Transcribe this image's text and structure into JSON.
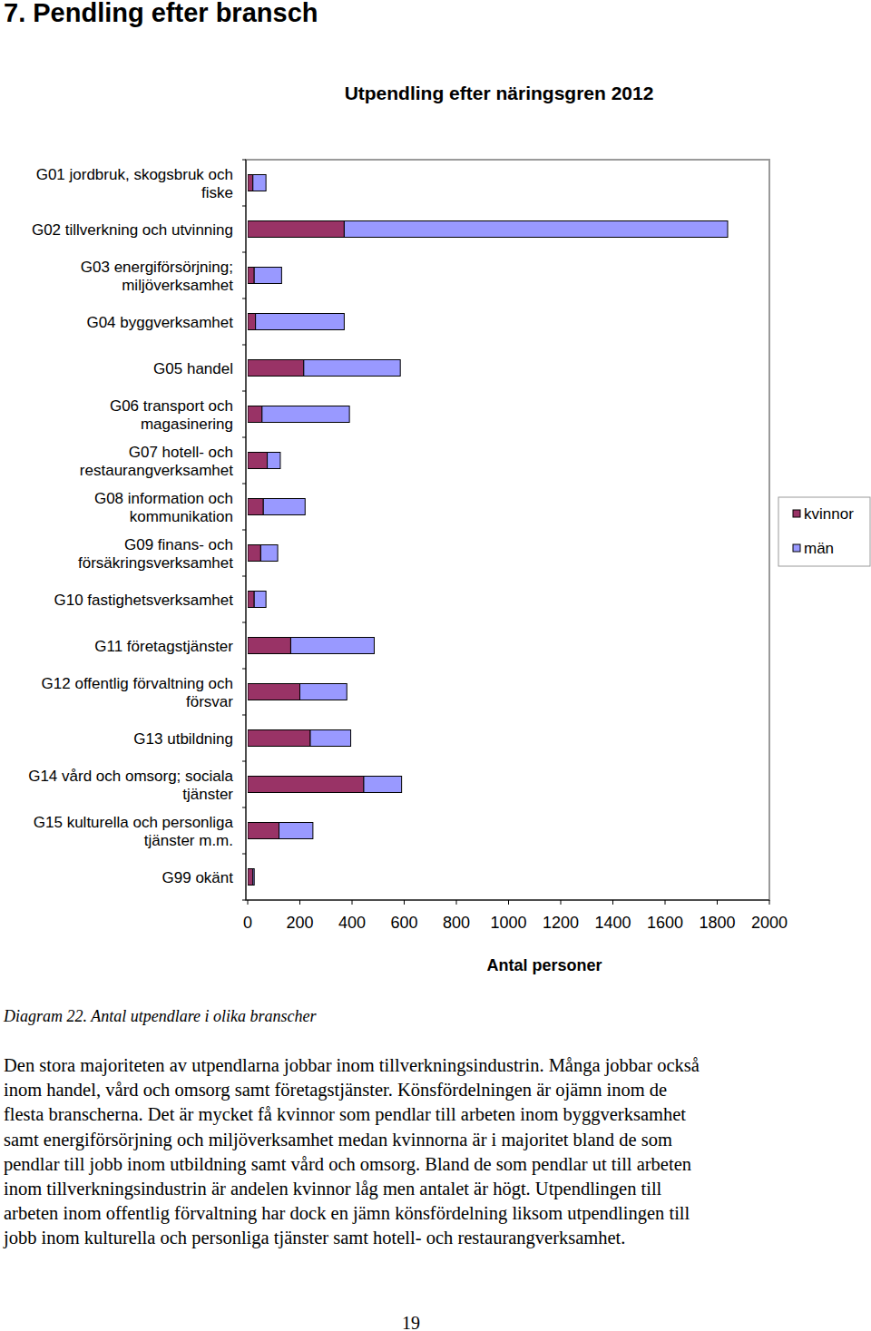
{
  "heading": "7. Pendling efter bransch",
  "chart_data": {
    "type": "bar",
    "orientation": "horizontal",
    "stacked": true,
    "title": "Utpendling efter näringsgren 2012",
    "x_label": "Antal personer",
    "categories": [
      "G01 jordbruk, skogsbruk och\nfiske",
      "G02 tillverkning och utvinning",
      "G03 energiförsörjning;\nmiljöverksamhet",
      "G04 byggverksamhet",
      "G05 handel",
      "G06 transport och\nmagasinering",
      "G07 hotell- och\nrestaurangverksamhet",
      "G08 information och\nkommunikation",
      "G09 finans- och\nförsäkringsverksamhet",
      "G10 fastighetsverksamhet",
      "G11 företagstjänster",
      "G12 offentlig förvaltning och\nförsvar",
      "G13 utbildning",
      "G14 vård och omsorg; sociala\ntjänster",
      "G15 kulturella och personliga\ntjänster m.m.",
      "G99 okänt"
    ],
    "series": [
      {
        "name": "kvinnor",
        "color": "#993366",
        "values": [
          20,
          370,
          25,
          30,
          215,
          55,
          75,
          60,
          50,
          25,
          165,
          200,
          240,
          445,
          120,
          20
        ]
      },
      {
        "name": "män",
        "color": "#9999ff",
        "values": [
          50,
          1470,
          105,
          340,
          370,
          335,
          50,
          160,
          65,
          45,
          320,
          180,
          155,
          145,
          130,
          5
        ]
      }
    ],
    "xlim": [
      0,
      2000
    ],
    "xticks": [
      0,
      200,
      400,
      600,
      800,
      1000,
      1200,
      1400,
      1600,
      1800,
      2000
    ],
    "grid": false,
    "legend": "right"
  },
  "caption": "Diagram 22. Antal utpendlare i olika branscher",
  "body": [
    "Den stora majoriteten av utpendlarna jobbar inom tillverkningsindustrin. Många jobbar också",
    "inom handel, vård och omsorg samt företagstjänster. Könsfördelningen är ojämn inom de",
    "flesta branscherna. Det är mycket få kvinnor som pendlar till arbeten inom byggverksamhet",
    "samt energiförsörjning och miljöverksamhet medan kvinnorna är i majoritet bland de som",
    "pendlar till jobb inom utbildning samt vård och omsorg. Bland de som pendlar ut till arbeten",
    "inom tillverkningsindustrin är andelen kvinnor låg men antalet är högt. Utpendlingen till",
    "arbeten inom offentlig förvaltning har dock en jämn könsfördelning liksom utpendlingen till",
    "jobb inom kulturella och personliga tjänster samt hotell- och restaurangverksamhet."
  ],
  "page_number": "19"
}
